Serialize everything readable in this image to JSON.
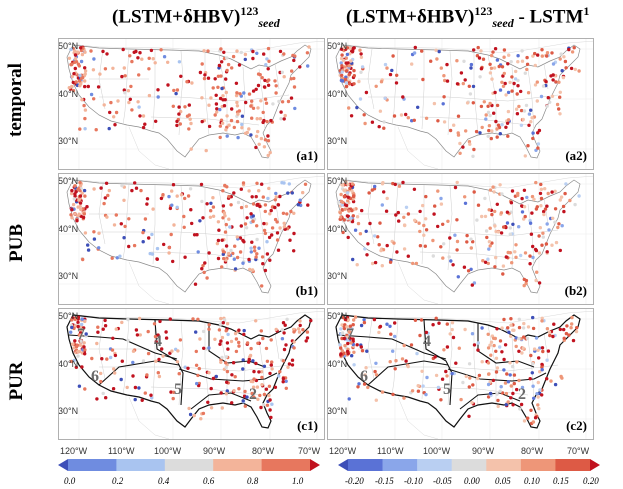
{
  "titles": {
    "col1": {
      "main": "(LSTM+δHBV)",
      "sup": "123",
      "sub": "seed"
    },
    "col2": {
      "main": "(LSTM+δHBV)",
      "sup": "123",
      "sub": "seed",
      "tail": " - LSTM",
      "tail_sup": "1"
    }
  },
  "rows": [
    "temporal",
    "PUB",
    "PUR"
  ],
  "panels": {
    "a1": "(a1)",
    "a2": "(a2)",
    "b1": "(b1)",
    "b2": "(b2)",
    "c1": "(c1)",
    "c2": "(c2)"
  },
  "lat_labels": [
    "50°N",
    "40°N",
    "30°N"
  ],
  "lon_labels": [
    "120°W",
    "110°W",
    "100°W",
    "90°W",
    "80°W",
    "70°W"
  ],
  "regions": [
    "7",
    "4",
    "6",
    "5",
    "2"
  ],
  "colorbar_left": {
    "ticks": [
      "0.0",
      "0.2",
      "0.4",
      "0.6",
      "0.8",
      "1.0"
    ],
    "colors": [
      "#3d4fb8",
      "#6f8ce0",
      "#a9c4f0",
      "#dcdcdc",
      "#f3b49a",
      "#e7775e",
      "#c1121f"
    ]
  },
  "colorbar_right": {
    "ticks": [
      "-0.20",
      "-0.15",
      "-0.10",
      "-0.05",
      "0.00",
      "0.05",
      "0.10",
      "0.15",
      "0.20"
    ],
    "colors": [
      "#3d4fb8",
      "#5a72d6",
      "#8aa6ea",
      "#b9cff2",
      "#dcdcdc",
      "#f4c2ab",
      "#ee9678",
      "#dd5a45",
      "#c1121f"
    ]
  }
}
